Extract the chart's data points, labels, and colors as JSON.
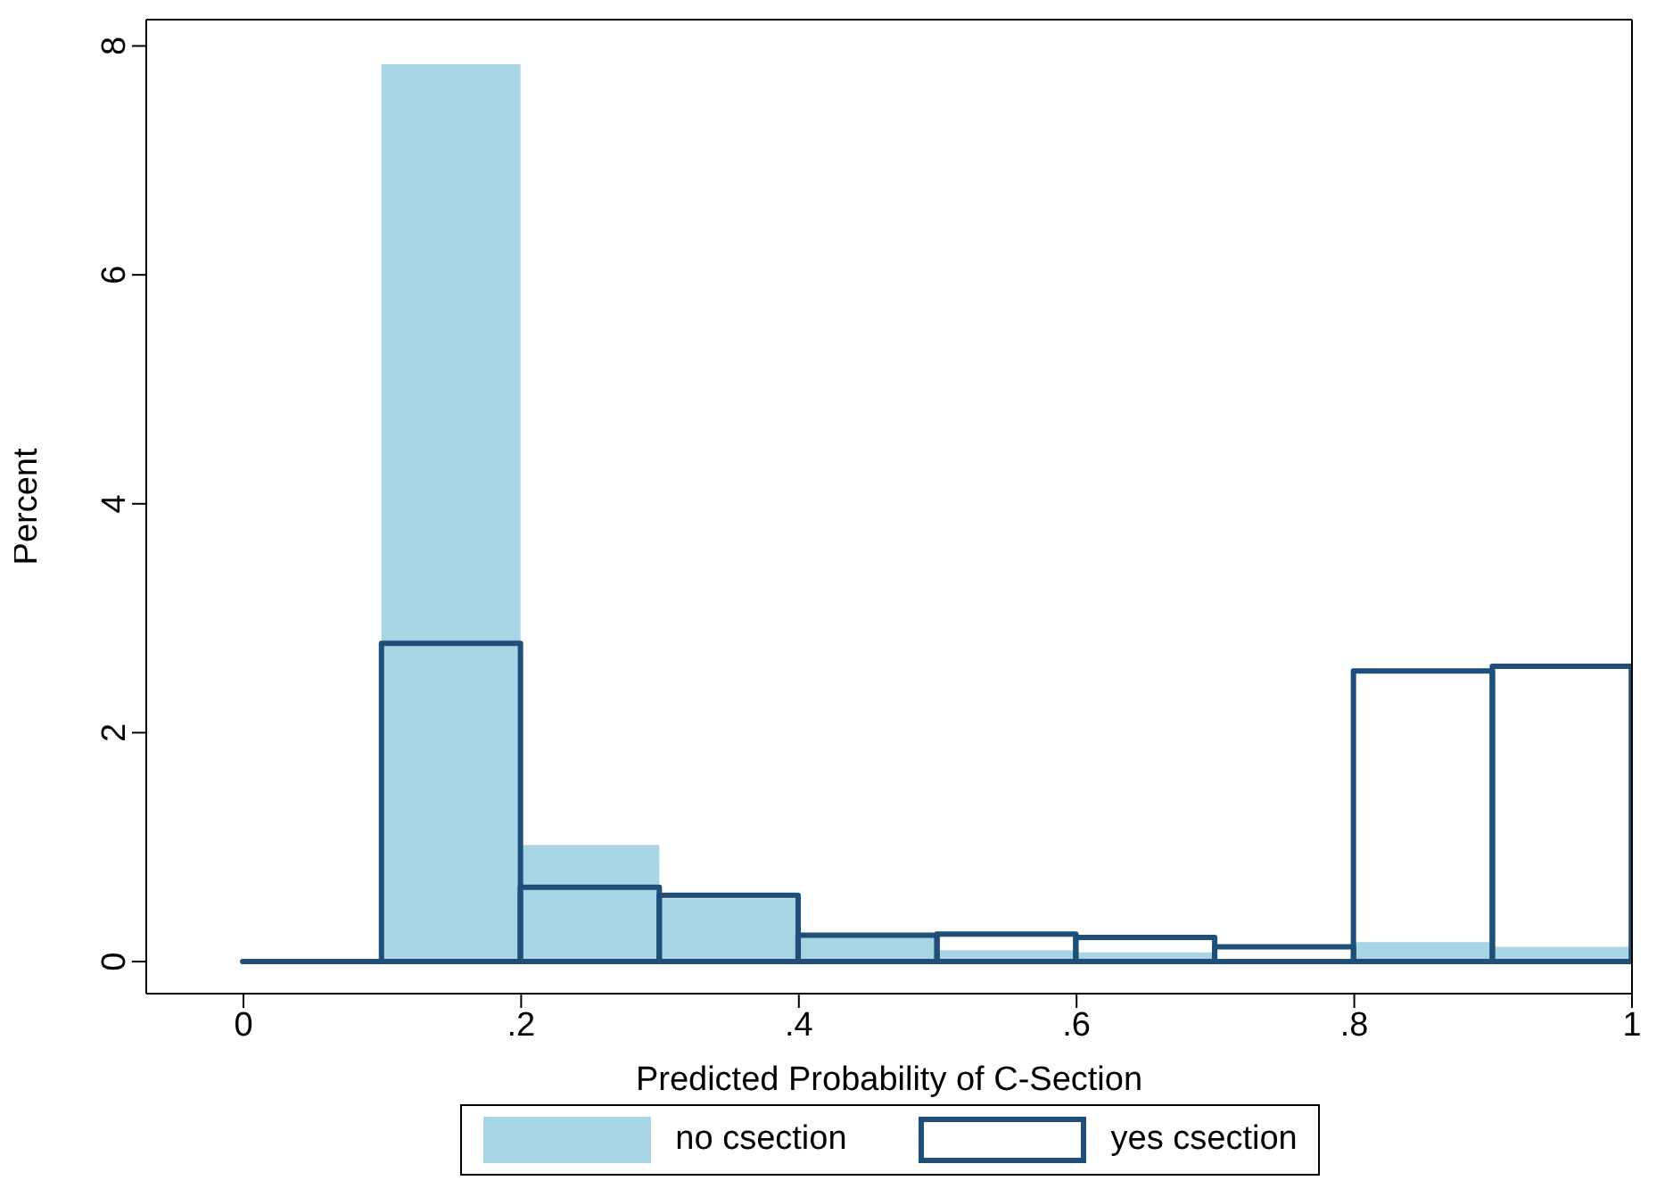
{
  "chart_data": {
    "type": "histogram",
    "xlabel": "Predicted Probability of C-Section",
    "ylabel": "Percent",
    "bins": [
      0,
      0.1,
      0.2,
      0.3,
      0.4,
      0.5,
      0.6,
      0.7,
      0.8,
      0.9,
      1.0
    ],
    "series": [
      {
        "name": "no csection",
        "color": "#a8d5e5",
        "values": [
          0,
          7.84,
          1.02,
          0.55,
          0.21,
          0.1,
          0.08,
          null,
          0.17,
          0.13
        ]
      },
      {
        "name": "yes csection",
        "color": "#1f4e79",
        "values": [
          0,
          2.78,
          0.65,
          0.58,
          0.23,
          0.24,
          0.21,
          0.13,
          2.54,
          2.58
        ]
      }
    ],
    "xlim": [
      -0.07,
      1.0
    ],
    "ylim": [
      -0.28,
      8.23
    ],
    "xticks": [
      0,
      {
        "value": 0.2,
        "label": ".2"
      },
      {
        "value": 0.4,
        "label": ".4"
      },
      {
        "value": 0.6,
        "label": ".6"
      },
      {
        "value": 0.8,
        "label": ".8"
      },
      1
    ],
    "yticks": [
      0,
      2,
      4,
      6,
      8
    ],
    "legend": "bottom"
  }
}
